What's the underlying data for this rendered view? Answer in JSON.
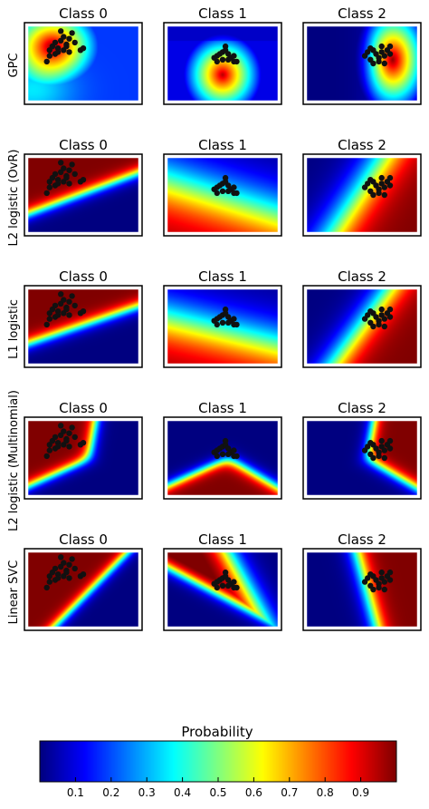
{
  "chart_data": {
    "type": "heatmap",
    "description_rows": [
      "GPC",
      "L2 logistic (OvR)",
      "L1 logistic",
      "L2 logistic (Multinomial)",
      "Linear SVC"
    ],
    "columns": [
      "Class 0",
      "Class 1",
      "Class 2"
    ],
    "colorbar": {
      "title": "Probability",
      "ticks": [
        "0.1",
        "0.2",
        "0.3",
        "0.4",
        "0.5",
        "0.6",
        "0.7",
        "0.8",
        "0.9"
      ],
      "range": [
        0,
        1
      ],
      "colormap": "jet"
    },
    "panels": [
      {
        "row": 0,
        "col": 0,
        "model": "gpc",
        "class": 0
      },
      {
        "row": 0,
        "col": 1,
        "model": "gpc",
        "class": 1
      },
      {
        "row": 0,
        "col": 2,
        "model": "gpc",
        "class": 2
      },
      {
        "row": 1,
        "col": 0,
        "model": "linear",
        "class": 0,
        "dir": [
          0.55,
          -1.0
        ],
        "offset": 0.0,
        "steep": 10
      },
      {
        "row": 1,
        "col": 1,
        "model": "linear",
        "class": 1,
        "dir": [
          0.45,
          1.0
        ],
        "offset": 0.1,
        "steep": 2.2
      },
      {
        "row": 1,
        "col": 2,
        "model": "linear",
        "class": 2,
        "dir": [
          1.0,
          0.45
        ],
        "offset": 0.05,
        "steep": 4
      },
      {
        "row": 2,
        "col": 0,
        "model": "linear",
        "class": 0,
        "dir": [
          0.5,
          -1.0
        ],
        "offset": 0.05,
        "steep": 10
      },
      {
        "row": 2,
        "col": 1,
        "model": "linear",
        "class": 1,
        "dir": [
          0.35,
          1.0
        ],
        "offset": 0.15,
        "steep": 2.6
      },
      {
        "row": 2,
        "col": 2,
        "model": "linear",
        "class": 2,
        "dir": [
          1.0,
          0.5
        ],
        "offset": 0.0,
        "steep": 5
      },
      {
        "row": 3,
        "col": 0,
        "model": "multinomial",
        "class": 0
      },
      {
        "row": 3,
        "col": 1,
        "model": "multinomial",
        "class": 1
      },
      {
        "row": 3,
        "col": 2,
        "model": "multinomial",
        "class": 2
      },
      {
        "row": 4,
        "col": 0,
        "model": "svc",
        "class": 0
      },
      {
        "row": 4,
        "col": 1,
        "model": "svc",
        "class": 1
      },
      {
        "row": 4,
        "col": 2,
        "model": "svc",
        "class": 2
      }
    ],
    "points": {
      "class_cluster_0": [
        [
          -0.6,
          0.35
        ],
        [
          -0.55,
          0.45
        ],
        [
          -0.5,
          0.55
        ],
        [
          -0.45,
          0.4
        ],
        [
          -0.4,
          0.6
        ],
        [
          -0.35,
          0.7
        ],
        [
          -0.3,
          0.5
        ],
        [
          -0.25,
          0.65
        ],
        [
          -0.2,
          0.8
        ],
        [
          -0.15,
          0.55
        ],
        [
          -0.5,
          0.25
        ],
        [
          -0.45,
          0.3
        ],
        [
          -0.35,
          0.35
        ],
        [
          -0.3,
          0.45
        ],
        [
          -0.25,
          0.3
        ],
        [
          -0.6,
          0.2
        ],
        [
          -0.05,
          0.35
        ],
        [
          0.0,
          0.4
        ],
        [
          -0.65,
          0.05
        ],
        [
          -0.4,
          0.85
        ]
      ],
      "class_cluster_1": [
        [
          -0.15,
          0.15
        ],
        [
          -0.1,
          0.2
        ],
        [
          -0.05,
          0.25
        ],
        [
          0.0,
          0.3
        ],
        [
          0.05,
          0.35
        ],
        [
          0.1,
          0.25
        ],
        [
          0.15,
          0.15
        ],
        [
          0.2,
          0.2
        ],
        [
          0.1,
          0.1
        ],
        [
          0.0,
          0.1
        ],
        [
          0.2,
          0.05
        ],
        [
          -0.1,
          0.05
        ],
        [
          0.25,
          0.05
        ],
        [
          0.05,
          0.45
        ]
      ],
      "class_cluster_2": [
        [
          0.05,
          0.2
        ],
        [
          0.1,
          0.3
        ],
        [
          0.15,
          0.1
        ],
        [
          0.2,
          0.35
        ],
        [
          0.25,
          0.25
        ],
        [
          0.3,
          0.15
        ],
        [
          0.35,
          0.3
        ],
        [
          0.4,
          0.2
        ],
        [
          0.45,
          0.35
        ],
        [
          0.5,
          0.25
        ],
        [
          0.3,
          0.05
        ],
        [
          0.2,
          0.0
        ],
        [
          0.35,
          0.45
        ],
        [
          0.5,
          0.45
        ],
        [
          0.15,
          0.4
        ],
        [
          0.4,
          0.0
        ]
      ]
    }
  }
}
